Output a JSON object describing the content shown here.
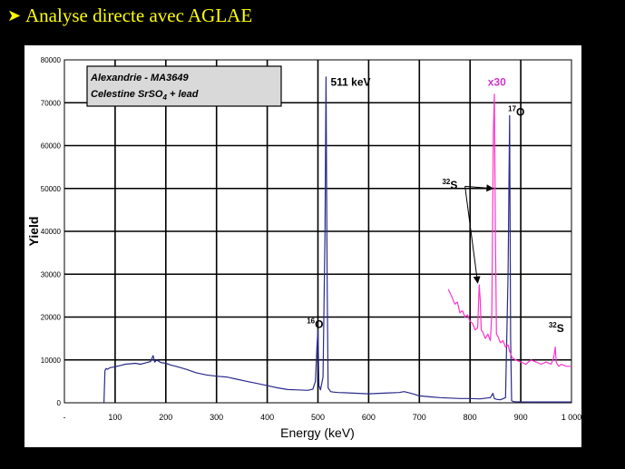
{
  "slide": {
    "title": "Analyse directe avec AGLAE",
    "bullet_icon": "arrow-bullet-icon"
  },
  "chart_data": {
    "type": "line",
    "xlabel": "Energy (keV)",
    "ylabel": "Yield",
    "xlim": [
      0,
      1000
    ],
    "ylim": [
      0,
      80000
    ],
    "x_ticks": [
      "-",
      "100",
      "200",
      "300",
      "400",
      "500",
      "600",
      "700",
      "800",
      "900",
      "1 000"
    ],
    "x_tick_values": [
      0,
      100,
      200,
      300,
      400,
      500,
      600,
      700,
      800,
      900,
      1000
    ],
    "y_ticks": [
      "0",
      "10000",
      "20000",
      "30000",
      "40000",
      "50000",
      "60000",
      "70000",
      "80000"
    ],
    "y_tick_values": [
      0,
      10000,
      20000,
      30000,
      40000,
      50000,
      60000,
      70000,
      80000
    ],
    "grid": true,
    "legend_box": {
      "line1": "Alexandrie - MA3649",
      "line2_prefix": "Celestine SrSO",
      "line2_sub": "4",
      "line2_suffix": " + lead"
    },
    "series": [
      {
        "color": "#2a2a8a",
        "x": [
          78,
          80,
          82,
          85,
          90,
          100,
          110,
          120,
          130,
          140,
          150,
          160,
          170,
          175,
          178,
          182,
          190,
          200,
          210,
          220,
          240,
          260,
          280,
          300,
          320,
          340,
          360,
          380,
          400,
          420,
          440,
          460,
          480,
          490,
          495,
          498,
          500,
          502,
          505,
          510,
          514,
          516,
          518,
          520,
          525,
          530,
          540,
          560,
          580,
          600,
          620,
          640,
          660,
          670,
          680,
          690,
          700,
          720,
          740,
          760,
          780,
          800,
          820,
          840,
          845,
          848,
          852,
          860,
          870,
          875,
          878,
          880,
          882,
          885,
          890,
          900,
          920,
          950,
          980,
          1000
        ],
        "y": [
          0,
          7500,
          8000,
          7800,
          8200,
          8400,
          8700,
          9000,
          9100,
          9200,
          9000,
          9300,
          9600,
          11000,
          9500,
          10000,
          9400,
          9200,
          8800,
          8500,
          7800,
          7000,
          6500,
          6200,
          6000,
          5500,
          5000,
          4500,
          4000,
          3500,
          3100,
          3000,
          2900,
          3200,
          5000,
          13000,
          17000,
          4000,
          3000,
          6000,
          40000,
          76000,
          30000,
          3500,
          2600,
          2500,
          2400,
          2300,
          2200,
          2100,
          2200,
          2300,
          2400,
          2600,
          2300,
          2000,
          1600,
          1400,
          1200,
          1100,
          1000,
          1000,
          900,
          1200,
          2200,
          1000,
          800,
          700,
          1200,
          30000,
          67000,
          15000,
          500,
          300,
          250,
          220,
          200,
          200,
          200,
          200
        ]
      },
      {
        "color": "#ff33cc",
        "x": [
          757,
          765,
          770,
          775,
          780,
          785,
          790,
          795,
          800,
          805,
          810,
          815,
          818,
          820,
          822,
          825,
          830,
          835,
          840,
          843,
          846,
          848,
          850,
          852,
          855,
          860,
          865,
          870,
          875,
          878,
          880,
          883,
          890,
          900,
          910,
          920,
          930,
          940,
          950,
          960,
          965,
          968,
          970,
          972,
          975,
          980,
          990,
          1000
        ],
        "y": [
          26500,
          24500,
          23000,
          23500,
          21000,
          21500,
          20000,
          20500,
          19000,
          18500,
          17000,
          17500,
          27500,
          24000,
          17000,
          16500,
          15000,
          16000,
          14500,
          21000,
          63000,
          72000,
          40000,
          16000,
          15500,
          14000,
          14500,
          13000,
          13500,
          12000,
          11500,
          10500,
          10000,
          9500,
          9000,
          10000,
          9500,
          9000,
          9500,
          9000,
          10500,
          13000,
          9500,
          9000,
          8500,
          9000,
          8500,
          8500
        ]
      }
    ],
    "annotations": [
      {
        "text": "511 keV",
        "x": 525,
        "y": 74000,
        "color": "#000000",
        "size": 12
      },
      {
        "text": "x30",
        "x": 835,
        "y": 74000,
        "color": "#cc33cc",
        "size": 12
      },
      {
        "text": "O",
        "pre": "17",
        "x": 875,
        "y": 67000,
        "color": "#000000",
        "size": 12
      },
      {
        "text": "S",
        "pre": "32",
        "x": 745,
        "y": 50000,
        "color": "#000000",
        "size": 12
      },
      {
        "text": "O",
        "pre": "16",
        "x": 478,
        "y": 17500,
        "color": "#000000",
        "size": 12
      },
      {
        "text": "S",
        "pre": "32",
        "x": 955,
        "y": 16500,
        "color": "#000000",
        "size": 12
      }
    ],
    "arrows": [
      {
        "from": [
          790,
          50500
        ],
        "to": [
          845,
          50000
        ]
      },
      {
        "from": [
          790,
          50500
        ],
        "to": [
          815,
          28000
        ]
      }
    ]
  }
}
